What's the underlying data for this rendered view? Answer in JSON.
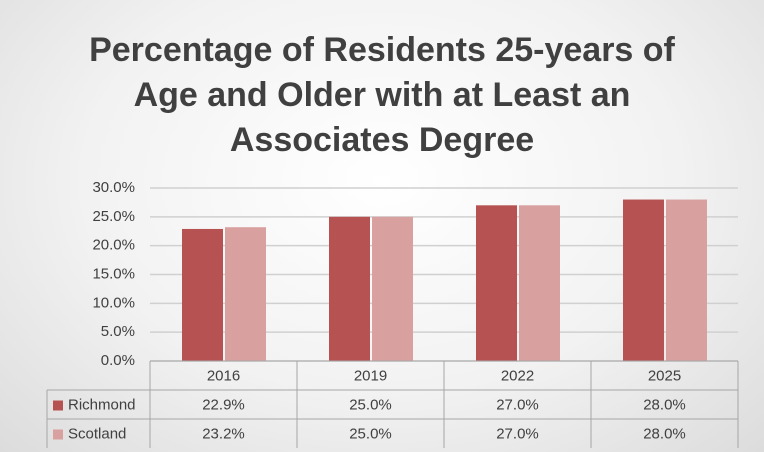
{
  "chart_data": {
    "type": "bar",
    "title": "Percentage of Residents 25-years of Age and Older with at Least an Associates Degree",
    "categories": [
      "2016",
      "2019",
      "2022",
      "2025"
    ],
    "series": [
      {
        "name": "Richmond",
        "color": "#b65352",
        "values": [
          22.9,
          25.0,
          27.0,
          28.0
        ],
        "value_labels": [
          "22.9%",
          "25.0%",
          "27.0%",
          "28.0%"
        ]
      },
      {
        "name": "Scotland",
        "color": "#d9a0a0",
        "values": [
          23.2,
          25.0,
          27.0,
          28.0
        ],
        "value_labels": [
          "23.2%",
          "25.0%",
          "27.0%",
          "28.0%"
        ]
      }
    ],
    "ylim": [
      0,
      30
    ],
    "yticks": [
      {
        "value": 0,
        "label": "0.0%"
      },
      {
        "value": 5,
        "label": "5.0%"
      },
      {
        "value": 10,
        "label": "10.0%"
      },
      {
        "value": 15,
        "label": "15.0%"
      },
      {
        "value": 20,
        "label": "20.0%"
      },
      {
        "value": 25,
        "label": "25.0%"
      },
      {
        "value": 30,
        "label": "30.0%"
      }
    ],
    "grid": true
  }
}
